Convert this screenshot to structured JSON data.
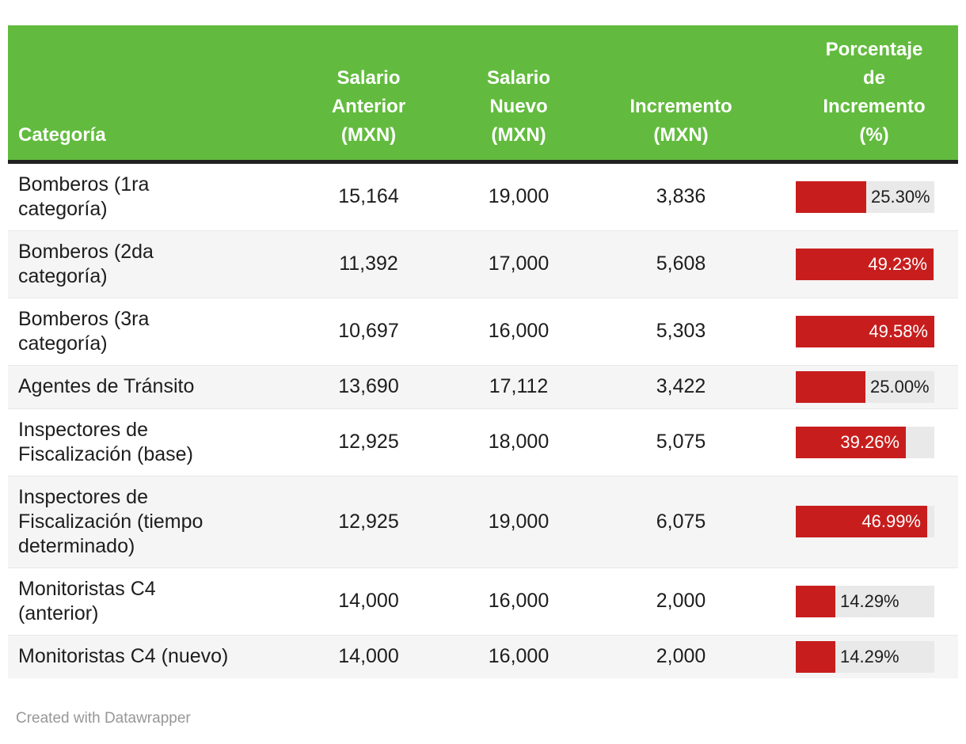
{
  "footer": {
    "credit": "Created with Datawrapper"
  },
  "colors": {
    "header_bg": "#62bb3e",
    "header_text": "#ffffff",
    "header_border": "#212121",
    "body_text": "#1d1d1d",
    "row_bg": "#ffffff",
    "row_alt_bg": "#f5f5f5",
    "row_border": "#e8e8e8",
    "bar_fill": "#c71e1d",
    "bar_track": "#e9e9e9",
    "bar_label_inside": "#ffffff",
    "credit_text": "#979797"
  },
  "chart_data": {
    "type": "table",
    "columns": [
      "Categoría",
      "Salario\nAnterior\n(MXN)",
      "Salario\nNuevo\n(MXN)",
      "Incremento\n(MXN)",
      "Porcentaje\nde\nIncremento\n(%)"
    ],
    "bar_column": "Porcentaje de Incremento (%)",
    "bar_axis_max": 49.58,
    "rows": [
      {
        "category": "Bomberos (1ra\ncategoría)",
        "salario_anterior": "15,164",
        "salario_nuevo": "19,000",
        "incremento": "3,836",
        "porcentaje": 25.3,
        "porcentaje_label": "25.30%"
      },
      {
        "category": "Bomberos (2da\ncategoría)",
        "salario_anterior": "11,392",
        "salario_nuevo": "17,000",
        "incremento": "5,608",
        "porcentaje": 49.23,
        "porcentaje_label": "49.23%"
      },
      {
        "category": "Bomberos (3ra\ncategoría)",
        "salario_anterior": "10,697",
        "salario_nuevo": "16,000",
        "incremento": "5,303",
        "porcentaje": 49.58,
        "porcentaje_label": "49.58%"
      },
      {
        "category": "Agentes de Tránsito",
        "salario_anterior": "13,690",
        "salario_nuevo": "17,112",
        "incremento": "3,422",
        "porcentaje": 25.0,
        "porcentaje_label": "25.00%"
      },
      {
        "category": "Inspectores de\nFiscalización (base)",
        "salario_anterior": "12,925",
        "salario_nuevo": "18,000",
        "incremento": "5,075",
        "porcentaje": 39.26,
        "porcentaje_label": "39.26%"
      },
      {
        "category": "Inspectores de\nFiscalización (tiempo\ndeterminado)",
        "salario_anterior": "12,925",
        "salario_nuevo": "19,000",
        "incremento": "6,075",
        "porcentaje": 46.99,
        "porcentaje_label": "46.99%"
      },
      {
        "category": "Monitoristas C4\n(anterior)",
        "salario_anterior": "14,000",
        "salario_nuevo": "16,000",
        "incremento": "2,000",
        "porcentaje": 14.29,
        "porcentaje_label": "14.29%"
      },
      {
        "category": "Monitoristas C4 (nuevo)",
        "salario_anterior": "14,000",
        "salario_nuevo": "16,000",
        "incremento": "2,000",
        "porcentaje": 14.29,
        "porcentaje_label": "14.29%"
      }
    ]
  }
}
